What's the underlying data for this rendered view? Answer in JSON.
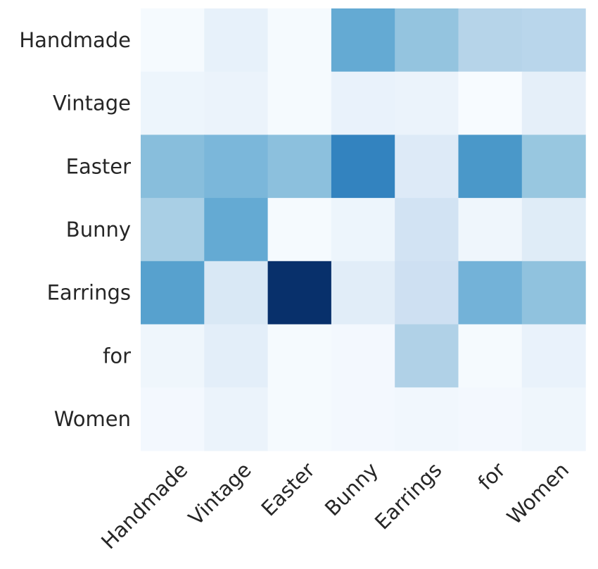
{
  "chart_data": {
    "type": "heatmap",
    "title": "",
    "xlabel": "",
    "ylabel": "",
    "x_categories": [
      "Handmade",
      "Vintage",
      "Easter",
      "Bunny",
      "Earrings",
      "for",
      "Women"
    ],
    "y_categories": [
      "Handmade",
      "Vintage",
      "Easter",
      "Bunny",
      "Earrings",
      "for",
      "Women"
    ],
    "values": [
      [
        0.01,
        0.08,
        0.01,
        0.52,
        0.4,
        0.3,
        0.29
      ],
      [
        0.05,
        0.06,
        0.01,
        0.07,
        0.06,
        0.0,
        0.09
      ],
      [
        0.43,
        0.46,
        0.42,
        0.68,
        0.13,
        0.6,
        0.39
      ],
      [
        0.34,
        0.52,
        0.01,
        0.05,
        0.19,
        0.04,
        0.12
      ],
      [
        0.56,
        0.15,
        1.0,
        0.11,
        0.21,
        0.48,
        0.41
      ],
      [
        0.04,
        0.1,
        0.01,
        0.02,
        0.32,
        0.01,
        0.07
      ],
      [
        0.02,
        0.06,
        0.01,
        0.02,
        0.03,
        0.02,
        0.04
      ]
    ],
    "colormap": "Blues",
    "color_low": "#f7fbff",
    "color_high": "#08306b",
    "colorbar": false,
    "grid": false
  }
}
